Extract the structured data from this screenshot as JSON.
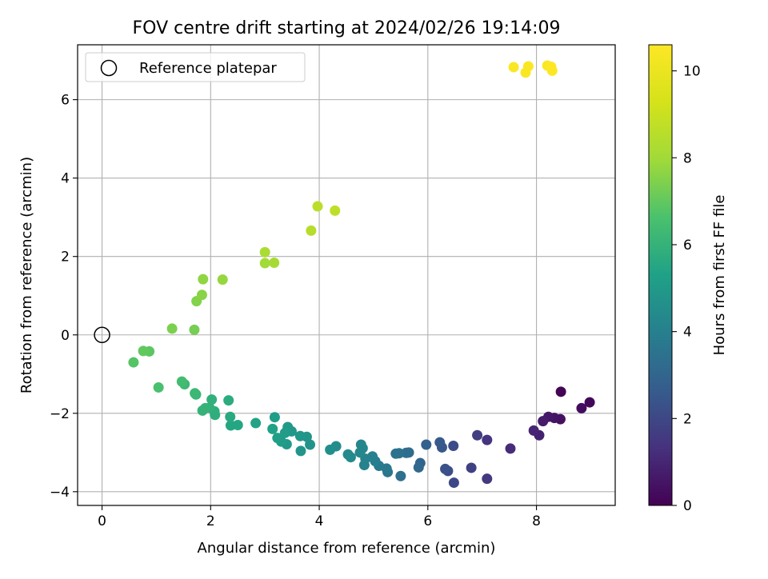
{
  "chart_data": {
    "type": "scatter",
    "title": "FOV centre drift starting at 2024/02/26 19:14:09",
    "xlabel": "Angular distance from reference (arcmin)",
    "ylabel": "Rotation from reference (arcmin)",
    "xlim": [
      -0.45,
      9.45
    ],
    "ylim": [
      -4.35,
      7.4
    ],
    "xticks": [
      0,
      2,
      4,
      6,
      8
    ],
    "yticks": [
      -4,
      -2,
      0,
      2,
      4,
      6
    ],
    "grid": true,
    "legend": {
      "position": "top-left",
      "entries": [
        {
          "label": "Reference platepar",
          "marker": "open-circle"
        }
      ]
    },
    "reference_point": {
      "x": 0,
      "y": 0
    },
    "colorbar": {
      "label": "Hours from first FF file",
      "colormap": "viridis",
      "range": [
        0,
        10.6
      ],
      "ticks": [
        0,
        2,
        4,
        6,
        8,
        10
      ]
    },
    "points": [
      {
        "x": 8.45,
        "y": -1.45,
        "c": 0.1
      },
      {
        "x": 8.98,
        "y": -1.72,
        "c": 0.2
      },
      {
        "x": 8.83,
        "y": -1.87,
        "c": 0.3
      },
      {
        "x": 8.44,
        "y": -2.15,
        "c": 0.4
      },
      {
        "x": 8.33,
        "y": -2.12,
        "c": 0.5
      },
      {
        "x": 8.22,
        "y": -2.09,
        "c": 0.6
      },
      {
        "x": 8.12,
        "y": -2.2,
        "c": 0.7
      },
      {
        "x": 8.05,
        "y": -2.56,
        "c": 0.9
      },
      {
        "x": 7.95,
        "y": -2.44,
        "c": 1.0
      },
      {
        "x": 7.52,
        "y": -2.9,
        "c": 1.2
      },
      {
        "x": 7.09,
        "y": -2.68,
        "c": 1.4
      },
      {
        "x": 7.09,
        "y": -3.67,
        "c": 1.5
      },
      {
        "x": 6.91,
        "y": -2.56,
        "c": 1.7
      },
      {
        "x": 6.8,
        "y": -3.39,
        "c": 1.8
      },
      {
        "x": 6.48,
        "y": -3.77,
        "c": 2.0
      },
      {
        "x": 6.47,
        "y": -2.83,
        "c": 2.1
      },
      {
        "x": 6.37,
        "y": -3.47,
        "c": 2.2
      },
      {
        "x": 6.32,
        "y": -3.42,
        "c": 2.3
      },
      {
        "x": 6.26,
        "y": -2.87,
        "c": 2.5
      },
      {
        "x": 6.22,
        "y": -2.74,
        "c": 2.6
      },
      {
        "x": 5.97,
        "y": -2.8,
        "c": 2.8
      },
      {
        "x": 5.86,
        "y": -3.27,
        "c": 3.0
      },
      {
        "x": 5.83,
        "y": -3.38,
        "c": 3.1
      },
      {
        "x": 5.65,
        "y": -3.0,
        "c": 3.2
      },
      {
        "x": 5.6,
        "y": -3.01,
        "c": 3.3
      },
      {
        "x": 5.5,
        "y": -3.6,
        "c": 3.4
      },
      {
        "x": 5.47,
        "y": -3.02,
        "c": 3.5
      },
      {
        "x": 5.41,
        "y": -3.03,
        "c": 3.5
      },
      {
        "x": 5.26,
        "y": -3.5,
        "c": 3.6
      },
      {
        "x": 5.24,
        "y": -3.41,
        "c": 3.7
      },
      {
        "x": 5.1,
        "y": -3.34,
        "c": 3.8
      },
      {
        "x": 5.03,
        "y": -3.22,
        "c": 3.9
      },
      {
        "x": 4.98,
        "y": -3.1,
        "c": 4.0
      },
      {
        "x": 4.85,
        "y": -3.16,
        "c": 4.1
      },
      {
        "x": 4.83,
        "y": -3.32,
        "c": 4.1
      },
      {
        "x": 4.8,
        "y": -2.89,
        "c": 4.2
      },
      {
        "x": 4.75,
        "y": -3.0,
        "c": 4.3
      },
      {
        "x": 4.77,
        "y": -2.8,
        "c": 4.3
      },
      {
        "x": 4.58,
        "y": -3.12,
        "c": 4.4
      },
      {
        "x": 4.53,
        "y": -3.05,
        "c": 4.4
      },
      {
        "x": 4.31,
        "y": -2.84,
        "c": 4.5
      },
      {
        "x": 4.2,
        "y": -2.93,
        "c": 4.6
      },
      {
        "x": 3.83,
        "y": -2.8,
        "c": 4.7
      },
      {
        "x": 3.77,
        "y": -2.6,
        "c": 4.8
      },
      {
        "x": 3.66,
        "y": -2.96,
        "c": 4.8
      },
      {
        "x": 3.65,
        "y": -2.58,
        "c": 4.9
      },
      {
        "x": 3.49,
        "y": -2.46,
        "c": 4.9
      },
      {
        "x": 3.42,
        "y": -2.35,
        "c": 5.0
      },
      {
        "x": 3.4,
        "y": -2.79,
        "c": 5.0
      },
      {
        "x": 3.37,
        "y": -2.5,
        "c": 5.1
      },
      {
        "x": 3.3,
        "y": -2.72,
        "c": 5.1
      },
      {
        "x": 3.23,
        "y": -2.63,
        "c": 5.2
      },
      {
        "x": 3.18,
        "y": -2.1,
        "c": 5.2
      },
      {
        "x": 3.14,
        "y": -2.4,
        "c": 5.3
      },
      {
        "x": 2.83,
        "y": -2.25,
        "c": 5.4
      },
      {
        "x": 2.5,
        "y": -2.3,
        "c": 5.5
      },
      {
        "x": 2.37,
        "y": -2.31,
        "c": 5.5
      },
      {
        "x": 2.36,
        "y": -2.09,
        "c": 5.6
      },
      {
        "x": 2.33,
        "y": -1.67,
        "c": 5.7
      },
      {
        "x": 2.08,
        "y": -2.04,
        "c": 5.8
      },
      {
        "x": 2.07,
        "y": -1.95,
        "c": 5.8
      },
      {
        "x": 2.02,
        "y": -1.65,
        "c": 5.9
      },
      {
        "x": 1.98,
        "y": -1.86,
        "c": 5.9
      },
      {
        "x": 1.9,
        "y": -1.87,
        "c": 6.0
      },
      {
        "x": 1.85,
        "y": -1.93,
        "c": 6.0
      },
      {
        "x": 1.73,
        "y": -1.52,
        "c": 6.1
      },
      {
        "x": 1.71,
        "y": -1.49,
        "c": 6.2
      },
      {
        "x": 1.52,
        "y": -1.26,
        "c": 6.3
      },
      {
        "x": 1.47,
        "y": -1.19,
        "c": 6.4
      },
      {
        "x": 1.04,
        "y": -1.34,
        "c": 6.6
      },
      {
        "x": 0.58,
        "y": -0.7,
        "c": 6.8
      },
      {
        "x": 0.87,
        "y": -0.42,
        "c": 6.9
      },
      {
        "x": 0.76,
        "y": -0.41,
        "c": 7.0
      },
      {
        "x": 1.7,
        "y": 0.13,
        "c": 7.3
      },
      {
        "x": 1.29,
        "y": 0.16,
        "c": 7.4
      },
      {
        "x": 1.74,
        "y": 0.86,
        "c": 7.5
      },
      {
        "x": 1.84,
        "y": 1.02,
        "c": 7.6
      },
      {
        "x": 1.86,
        "y": 1.42,
        "c": 7.7
      },
      {
        "x": 2.22,
        "y": 1.41,
        "c": 7.8
      },
      {
        "x": 3.0,
        "y": 1.83,
        "c": 8.0
      },
      {
        "x": 3.17,
        "y": 1.84,
        "c": 8.1
      },
      {
        "x": 3.0,
        "y": 2.11,
        "c": 8.2
      },
      {
        "x": 3.85,
        "y": 2.66,
        "c": 8.5
      },
      {
        "x": 3.97,
        "y": 3.28,
        "c": 8.6
      },
      {
        "x": 4.29,
        "y": 3.17,
        "c": 8.7
      },
      {
        "x": 7.58,
        "y": 6.83,
        "c": 10.5
      },
      {
        "x": 7.85,
        "y": 6.85,
        "c": 10.5
      },
      {
        "x": 7.8,
        "y": 6.69,
        "c": 10.5
      },
      {
        "x": 8.2,
        "y": 6.87,
        "c": 10.5
      },
      {
        "x": 8.27,
        "y": 6.84,
        "c": 10.6
      },
      {
        "x": 8.29,
        "y": 6.74,
        "c": 10.6
      }
    ]
  }
}
